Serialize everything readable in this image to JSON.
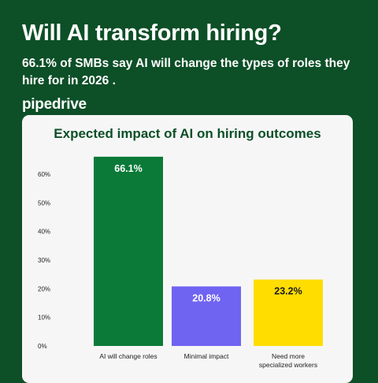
{
  "header": {
    "title": "Will AI transform hiring?",
    "subtitle": "66.1% of SMBs say AI will change the types of roles they hire for in 2026 .",
    "logo_text": "pipedrive"
  },
  "colors": {
    "background": "#0d4f27",
    "card": "#f6f6f6"
  },
  "chart_data": {
    "type": "bar",
    "title": "Expected impact of AI on hiring outcomes",
    "xlabel": "",
    "ylabel": "",
    "ylim": [
      0,
      60
    ],
    "yticks": [
      "0%",
      "10%",
      "20%",
      "30%",
      "40%",
      "50%",
      "60%"
    ],
    "categories": [
      [
        "AI will change roles"
      ],
      [
        "Minimal impact"
      ],
      [
        "Need more",
        "specialized workers"
      ]
    ],
    "values": [
      66.1,
      20.8,
      23.2
    ],
    "value_labels": [
      "66.1%",
      "20.8%",
      "23.2%"
    ],
    "bar_colors": [
      "#0b7a38",
      "#6f63f2",
      "#ffdd00"
    ],
    "label_colors": [
      "#ffffff",
      "#ffffff",
      "#1a1a1a"
    ],
    "grid": false
  }
}
